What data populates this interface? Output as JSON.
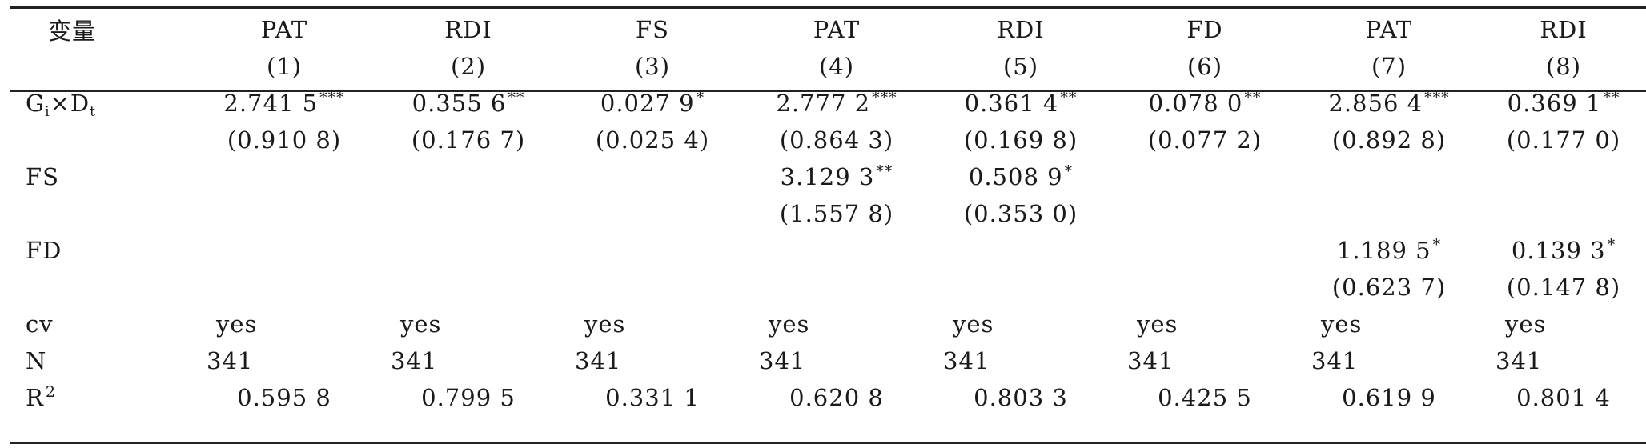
{
  "header": {
    "var_label": "变量",
    "cols": [
      {
        "name": "PAT",
        "num": "(1)"
      },
      {
        "name": "RDI",
        "num": "(2)"
      },
      {
        "name": "FS",
        "num": "(3)"
      },
      {
        "name": "PAT",
        "num": "(4)"
      },
      {
        "name": "RDI",
        "num": "(5)"
      },
      {
        "name": "FD",
        "num": "(6)"
      },
      {
        "name": "PAT",
        "num": "(7)"
      },
      {
        "name": "RDI",
        "num": "(8)"
      }
    ]
  },
  "rows": {
    "gxd": {
      "label_g": "G",
      "label_i": "i",
      "label_x": "×D",
      "label_t": "t",
      "coef": [
        "2.741 5",
        "0.355 6",
        "0.027 9",
        "2.777 2",
        "0.361 4",
        "0.078 0",
        "2.856 4",
        "0.369 1"
      ],
      "stars": [
        "***",
        "**",
        "*",
        "***",
        "**",
        "**",
        "***",
        "**"
      ],
      "se": [
        "(0.910 8)",
        "(0.176 7)",
        "(0.025 4)",
        "(0.864 3)",
        "(0.169 8)",
        "(0.077 2)",
        "(0.892 8)",
        "(0.177 0)"
      ]
    },
    "fs": {
      "label": "FS",
      "coef4": "3.129 3",
      "stars4": "**",
      "se4": "(1.557 8)",
      "coef5": "0.508 9",
      "stars5": "*",
      "se5": "(0.353 0)"
    },
    "fd": {
      "label": "FD",
      "coef7": "1.189 5",
      "stars7": "*",
      "se7": "(0.623 7)",
      "coef8": "0.139 3",
      "stars8": "*",
      "se8": "(0.147 8)"
    },
    "cv": {
      "label": "cv",
      "values": [
        "yes",
        "yes",
        "yes",
        "yes",
        "yes",
        "yes",
        "yes",
        "yes"
      ]
    },
    "n": {
      "label": "N",
      "values": [
        "341",
        "341",
        "341",
        "341",
        "341",
        "341",
        "341",
        "341"
      ]
    },
    "r2": {
      "label": "R",
      "label_sup": "2",
      "values": [
        "0.595 8",
        "0.799 5",
        "0.331 1",
        "0.620 8",
        "0.803 3",
        "0.425 5",
        "0.619 9",
        "0.801 4"
      ]
    }
  }
}
